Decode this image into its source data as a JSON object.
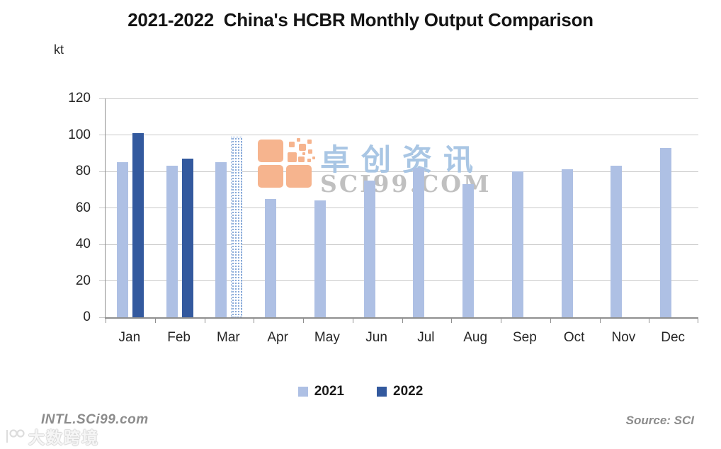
{
  "chart_data": {
    "type": "bar",
    "title": "2021-2022  China's HCBR Monthly Output Comparison",
    "ylabel": "kt",
    "xlabel": "",
    "ylim": [
      0,
      120
    ],
    "yticks": [
      0,
      20,
      40,
      60,
      80,
      100,
      120
    ],
    "grid": true,
    "legend_position": "bottom",
    "categories": [
      "Jan",
      "Feb",
      "Mar",
      "Apr",
      "May",
      "Jun",
      "Jul",
      "Aug",
      "Sep",
      "Oct",
      "Nov",
      "Dec"
    ],
    "series": [
      {
        "name": "2021",
        "color": "#AEC0E4",
        "values": [
          85,
          83,
          85,
          65,
          64,
          75,
          82,
          73,
          80,
          81,
          83,
          93
        ]
      },
      {
        "name": "2022",
        "color": "#33599E",
        "values": [
          101,
          87,
          99,
          null,
          null,
          null,
          null,
          null,
          null,
          null,
          null,
          null
        ],
        "bar_styles": [
          "solid",
          "solid",
          "dotted",
          null,
          null,
          null,
          null,
          null,
          null,
          null,
          null,
          null
        ]
      }
    ]
  },
  "watermark": {
    "brand_cn": "卓创资讯",
    "brand_site": "SCI99.COM"
  },
  "footer": {
    "left": "INTL.SCi99.com",
    "right": "Source: SCI",
    "bottom_watermark": "大数跨境"
  },
  "colors": {
    "series_2021": "#AEC0E4",
    "series_2022": "#33599E",
    "dotted_bar": "#7FA3D6",
    "gridline": "#C9C9C9",
    "axis_line": "#8F8F8F",
    "tick_label": "#262626",
    "title": "#141414",
    "footer_text": "#8C8C8C",
    "wm_logo": "#F6B48E",
    "wm_cn": "#A9C6E4",
    "wm_site": "#9A9A9A",
    "bottom_wm_outline": "#C8C8C8"
  }
}
